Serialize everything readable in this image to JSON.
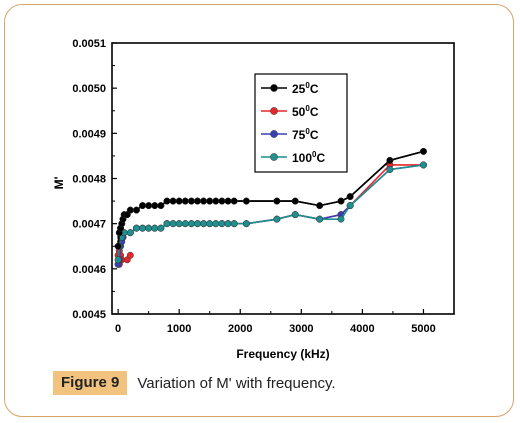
{
  "figure": {
    "label": "Figure 9",
    "caption": "Variation of M' with frequency."
  },
  "colors": {
    "border": "#d9a46a",
    "caption_label_bg": "#f2c37f",
    "series": [
      "#000000",
      "#e8262a",
      "#3b3fb5",
      "#1f8f8f"
    ]
  },
  "chart_data": {
    "type": "line",
    "xlabel": "Frequency (kHz)",
    "ylabel": "M'",
    "xlim": [
      -100,
      5500
    ],
    "ylim": [
      0.0045,
      0.0051
    ],
    "xticks": [
      0,
      1000,
      2000,
      3000,
      4000,
      5000
    ],
    "yticks": [
      0.0045,
      0.0046,
      0.0047,
      0.0048,
      0.0049,
      0.005,
      0.0051
    ],
    "legend_position": "top-right",
    "series": [
      {
        "name": "25",
        "name_sup": "0",
        "name_suffix": "C",
        "x": [
          0,
          20,
          40,
          60,
          80,
          100,
          150,
          200,
          300,
          400,
          500,
          600,
          700,
          800,
          900,
          1000,
          1100,
          1200,
          1300,
          1400,
          1500,
          1600,
          1700,
          1800,
          1900,
          2100,
          2600,
          2900,
          3300,
          3650,
          3800,
          4450,
          5000
        ],
        "y": [
          0.00465,
          0.00468,
          0.00469,
          0.0047,
          0.00471,
          0.00472,
          0.00472,
          0.00473,
          0.00473,
          0.00474,
          0.00474,
          0.00474,
          0.00474,
          0.00475,
          0.00475,
          0.00475,
          0.00475,
          0.00475,
          0.00475,
          0.00475,
          0.00475,
          0.00475,
          0.00475,
          0.00475,
          0.00475,
          0.00475,
          0.00475,
          0.00475,
          0.00474,
          0.00475,
          0.00476,
          0.00484,
          0.00486
        ]
      },
      {
        "name": "50",
        "name_sup": "0",
        "name_suffix": "C",
        "x": [
          0,
          20,
          40,
          60,
          150,
          200
        ],
        "y": [
          0.00461,
          0.00461,
          0.00463,
          0.00462,
          0.00462,
          0.00463
        ],
        "x2": [
          0,
          20,
          40,
          60,
          80,
          100,
          200,
          300,
          400,
          500,
          600,
          700,
          800,
          900,
          1000,
          1100,
          1200,
          1300,
          1400,
          1500,
          1600,
          1700,
          1800,
          1900,
          2100,
          2600,
          2900,
          3300,
          3650,
          3800,
          4450,
          5000
        ],
        "y2": [
          0.00463,
          0.00464,
          0.00466,
          0.00467,
          0.00467,
          0.00468,
          0.00468,
          0.00469,
          0.00469,
          0.00469,
          0.00469,
          0.00469,
          0.0047,
          0.0047,
          0.0047,
          0.0047,
          0.0047,
          0.0047,
          0.0047,
          0.0047,
          0.0047,
          0.0047,
          0.0047,
          0.0047,
          0.0047,
          0.00471,
          0.00472,
          0.00471,
          0.00472,
          0.00474,
          0.00483,
          0.00483
        ]
      },
      {
        "name": "75",
        "name_sup": "0",
        "name_suffix": "C",
        "x": [
          0,
          20,
          40,
          60,
          80,
          100,
          200,
          300,
          400,
          500,
          600,
          700,
          800,
          900,
          1000,
          1100,
          1200,
          1300,
          1400,
          1500,
          1600,
          1700,
          1800,
          1900,
          2100,
          2600,
          2900,
          3300,
          3650,
          3800,
          4450,
          5000
        ],
        "y": [
          0.00461,
          0.00462,
          0.00465,
          0.00466,
          0.00467,
          0.00468,
          0.00468,
          0.00469,
          0.00469,
          0.00469,
          0.00469,
          0.00469,
          0.0047,
          0.0047,
          0.0047,
          0.0047,
          0.0047,
          0.0047,
          0.0047,
          0.0047,
          0.0047,
          0.0047,
          0.0047,
          0.0047,
          0.0047,
          0.00471,
          0.00472,
          0.00471,
          0.00472,
          0.00474,
          0.00482,
          0.00483
        ]
      },
      {
        "name": "100",
        "name_sup": "0",
        "name_suffix": "C",
        "x": [
          0,
          20,
          40,
          60,
          80,
          100,
          200,
          300,
          400,
          500,
          600,
          700,
          800,
          900,
          1000,
          1100,
          1200,
          1300,
          1400,
          1500,
          1600,
          1700,
          1800,
          1900,
          2100,
          2600,
          2900,
          3300,
          3650,
          3800,
          4450,
          5000
        ],
        "y": [
          0.00462,
          0.00465,
          0.00467,
          0.00467,
          0.00468,
          0.00468,
          0.00468,
          0.00469,
          0.00469,
          0.00469,
          0.00469,
          0.00469,
          0.0047,
          0.0047,
          0.0047,
          0.0047,
          0.0047,
          0.0047,
          0.0047,
          0.0047,
          0.0047,
          0.0047,
          0.0047,
          0.0047,
          0.0047,
          0.00471,
          0.00472,
          0.00471,
          0.00471,
          0.00474,
          0.00482,
          0.00483
        ]
      }
    ]
  }
}
